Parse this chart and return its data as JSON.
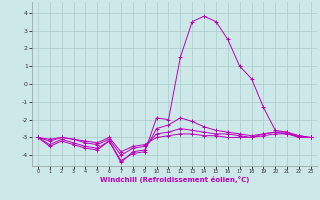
{
  "xlabel": "Windchill (Refroidissement éolien,°C)",
  "background_color": "#cce8e8",
  "grid_color": "#aacccc",
  "line_color": "#bb00bb",
  "xlim": [
    -0.5,
    23.5
  ],
  "ylim": [
    -4.6,
    4.6
  ],
  "xticks": [
    0,
    1,
    2,
    3,
    4,
    5,
    6,
    7,
    8,
    9,
    10,
    11,
    12,
    13,
    14,
    15,
    16,
    17,
    18,
    19,
    20,
    21,
    22,
    23
  ],
  "yticks": [
    -4,
    -3,
    -2,
    -1,
    0,
    1,
    2,
    3,
    4
  ],
  "series": [
    {
      "x": [
        0,
        1,
        2,
        3,
        4,
        5,
        6,
        7,
        8,
        9,
        10,
        11,
        12,
        13,
        14,
        15,
        16,
        17,
        18,
        19,
        20,
        21,
        22,
        23
      ],
      "y": [
        -3.0,
        -3.5,
        -3.2,
        -3.4,
        -3.6,
        -3.7,
        -3.2,
        -4.3,
        -3.9,
        -3.8,
        -1.9,
        -2.0,
        1.5,
        3.5,
        3.8,
        3.5,
        2.5,
        1.0,
        0.3,
        -1.3,
        -2.6,
        -2.7,
        -3.0,
        -3.0
      ]
    },
    {
      "x": [
        0,
        1,
        2,
        3,
        4,
        5,
        6,
        7,
        8,
        9,
        10,
        11,
        12,
        13,
        14,
        15,
        16,
        17,
        18,
        19,
        20,
        21,
        22,
        23
      ],
      "y": [
        -3.0,
        -3.4,
        -3.1,
        -3.3,
        -3.5,
        -3.6,
        -3.2,
        -4.4,
        -3.8,
        -3.7,
        -2.5,
        -2.3,
        -1.9,
        -2.1,
        -2.4,
        -2.6,
        -2.7,
        -2.8,
        -2.9,
        -2.8,
        -2.7,
        -2.8,
        -3.0,
        -3.0
      ]
    },
    {
      "x": [
        0,
        1,
        2,
        3,
        4,
        5,
        6,
        7,
        8,
        9,
        10,
        11,
        12,
        13,
        14,
        15,
        16,
        17,
        18,
        19,
        20,
        21,
        22,
        23
      ],
      "y": [
        -3.0,
        -3.2,
        -3.0,
        -3.1,
        -3.3,
        -3.4,
        -3.1,
        -4.0,
        -3.6,
        -3.5,
        -2.8,
        -2.7,
        -2.5,
        -2.6,
        -2.7,
        -2.8,
        -2.8,
        -2.9,
        -3.0,
        -2.8,
        -2.7,
        -2.7,
        -2.9,
        -3.0
      ]
    },
    {
      "x": [
        0,
        1,
        2,
        3,
        4,
        5,
        6,
        7,
        8,
        9,
        10,
        11,
        12,
        13,
        14,
        15,
        16,
        17,
        18,
        19,
        20,
        21,
        22,
        23
      ],
      "y": [
        -3.0,
        -3.1,
        -3.0,
        -3.1,
        -3.2,
        -3.3,
        -3.0,
        -3.8,
        -3.5,
        -3.4,
        -3.0,
        -2.9,
        -2.8,
        -2.8,
        -2.9,
        -2.9,
        -3.0,
        -3.0,
        -3.0,
        -2.9,
        -2.8,
        -2.8,
        -2.9,
        -3.0
      ]
    }
  ]
}
